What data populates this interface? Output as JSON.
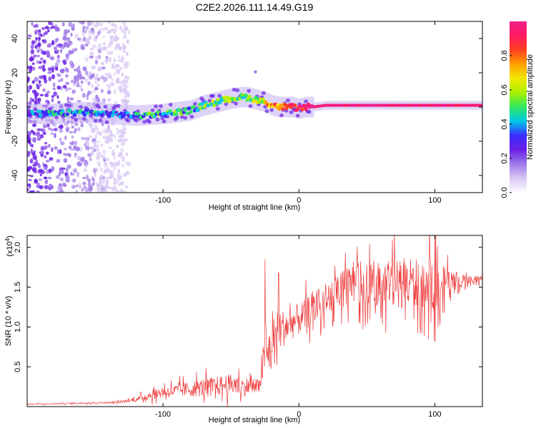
{
  "title": "C2E2.2026.111.14.49.G19",
  "colors": {
    "snr_line": "#ee3a3a",
    "colormap": [
      "#ffffff",
      "#d8c8f4",
      "#a07ae8",
      "#6a1fe6",
      "#3a2cff",
      "#00c8e8",
      "#30e860",
      "#a8f000",
      "#f0e800",
      "#ffa000",
      "#ff4020",
      "#ff1a60",
      "#f0208c"
    ]
  },
  "chart_data": [
    {
      "id": "spectrogram",
      "type": "heatmap",
      "xlabel": "Height of straight line (km)",
      "ylabel": "Frequency (Hz)",
      "xlim": [
        -200,
        135
      ],
      "ylim": [
        -50,
        50
      ],
      "xticks": [
        -100,
        0,
        100
      ],
      "yticks": [
        -40,
        -20,
        0,
        20,
        40
      ],
      "colorbar": {
        "label": "Normalized spectral amplitude",
        "range": [
          0,
          1
        ],
        "ticks": [
          0.0,
          0.2,
          0.4,
          0.6,
          0.8
        ]
      },
      "ridge": {
        "description": "frequency centroid of dominant signal vs height",
        "x": [
          -200,
          -180,
          -160,
          -140,
          -120,
          -100,
          -90,
          -80,
          -70,
          -60,
          -50,
          -40,
          -35,
          -30,
          -25,
          -20,
          -15,
          -10,
          -5,
          0,
          5,
          10,
          20,
          40,
          60,
          80,
          100,
          135
        ],
        "y": [
          -4,
          -4,
          -3,
          -4,
          -5,
          -4,
          -3,
          -2,
          1,
          3,
          5,
          6,
          5,
          4,
          3,
          1,
          0,
          0,
          0,
          -1,
          0,
          0,
          1,
          1,
          1,
          1,
          1,
          1
        ],
        "amplitude": [
          0.3,
          0.4,
          0.4,
          0.3,
          0.4,
          0.45,
          0.5,
          0.45,
          0.5,
          0.55,
          0.5,
          0.55,
          0.5,
          0.6,
          0.7,
          0.75,
          0.8,
          0.85,
          0.9,
          0.9,
          0.95,
          1.0,
          1.0,
          1.0,
          1.0,
          1.0,
          1.0,
          1.0
        ]
      },
      "noise_region_x": [
        -200,
        -125
      ]
    },
    {
      "id": "snr",
      "type": "line",
      "xlabel": "Height of straight line (km)",
      "ylabel": "SNR (10 * v/v)",
      "y_multiplier": "(x10",
      "y_multiplier_exp": "4",
      "y_multiplier_close": ")",
      "xlim": [
        -200,
        135
      ],
      "ylim": [
        0,
        21500
      ],
      "xticks": [
        -100,
        0,
        100
      ],
      "yticks": [
        5000,
        10000,
        15000,
        20000
      ],
      "ytick_labels": [
        "0.5",
        "1.0",
        "1.5",
        "2.0"
      ],
      "series": [
        {
          "name": "SNR",
          "x": [
            -200,
            -180,
            -160,
            -140,
            -130,
            -120,
            -110,
            -100,
            -90,
            -80,
            -70,
            -60,
            -50,
            -45,
            -40,
            -35,
            -30,
            -27,
            -25,
            -22,
            -20,
            -15,
            -10,
            -5,
            0,
            5,
            10,
            20,
            30,
            40,
            50,
            60,
            70,
            80,
            90,
            100,
            110,
            120,
            135
          ],
          "envelope_mean": [
            300,
            350,
            450,
            500,
            600,
            900,
            1400,
            1800,
            2000,
            2200,
            2400,
            2600,
            2800,
            2600,
            2500,
            2600,
            2400,
            5000,
            5500,
            7000,
            7500,
            9500,
            10000,
            10500,
            11000,
            11500,
            12500,
            13500,
            14500,
            15500,
            15500,
            15500,
            15500,
            15500,
            15500,
            15500,
            16000,
            16000,
            16000
          ],
          "spread": [
            150,
            150,
            200,
            250,
            300,
            600,
            1200,
            1600,
            1800,
            2200,
            2600,
            2700,
            2900,
            2700,
            2600,
            2600,
            2400,
            5500,
            6000,
            7000,
            8000,
            6000,
            5000,
            4500,
            4500,
            4500,
            4500,
            4500,
            5000,
            5500,
            6000,
            6500,
            7000,
            7000,
            7000,
            7500,
            3000,
            1500,
            800
          ],
          "peaks": [
            {
              "x": -25,
              "y": 18500
            },
            {
              "x": -15,
              "y": 16800
            },
            {
              "x": 40,
              "y": 18200
            },
            {
              "x": 100,
              "y": 21500
            }
          ]
        }
      ]
    }
  ]
}
